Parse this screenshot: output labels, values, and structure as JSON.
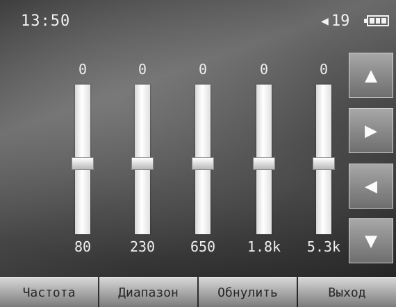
{
  "status": {
    "time": "13:50",
    "volume": "19",
    "battery_icon": "battery-icon",
    "volume_icon": "speaker-icon"
  },
  "equalizer": {
    "bands": [
      {
        "gain": "0",
        "freq": "80",
        "level": 0.5
      },
      {
        "gain": "0",
        "freq": "230",
        "level": 0.5
      },
      {
        "gain": "0",
        "freq": "650",
        "level": 0.5
      },
      {
        "gain": "0",
        "freq": "1.8k",
        "level": 0.5
      },
      {
        "gain": "0",
        "freq": "5.3k",
        "level": 0.5
      }
    ]
  },
  "side_buttons": [
    {
      "icon": "arrow-up-icon",
      "glyph": "▲"
    },
    {
      "icon": "arrow-right-icon",
      "glyph": "▶"
    },
    {
      "icon": "arrow-left-icon",
      "glyph": "◀"
    },
    {
      "icon": "arrow-down-icon",
      "glyph": "▼"
    }
  ],
  "softkeys": {
    "frequency": "Частота",
    "range": "Диапазон",
    "reset": "Обнулить",
    "exit": "Выход"
  }
}
